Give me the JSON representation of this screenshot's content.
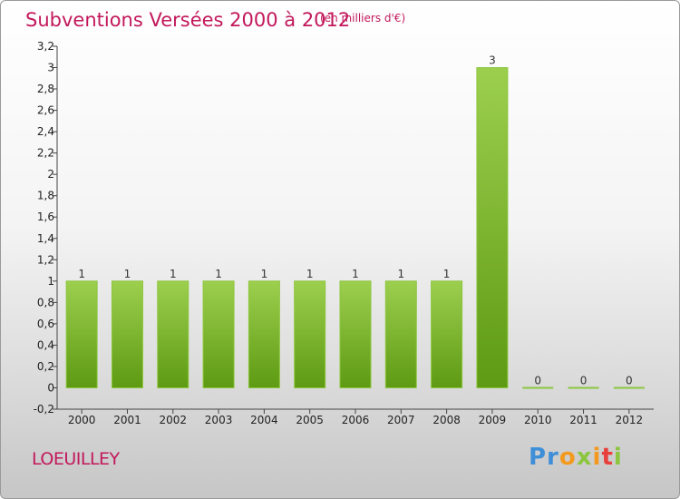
{
  "header": {
    "title": "Subventions Versées 2000 à 2012",
    "subtitle": "(en milliers d'€)"
  },
  "footer": {
    "commune": "LOEUILLEY",
    "logo": [
      "Pr",
      "o",
      "x",
      "i",
      "t",
      "i"
    ]
  },
  "colors": {
    "title": "#c2185b",
    "bar_light": "#9ccf4e",
    "bar_dark": "#5e9a13",
    "axis": "#444444"
  },
  "chart_data": {
    "type": "bar",
    "categories": [
      "2000",
      "2001",
      "2002",
      "2003",
      "2004",
      "2005",
      "2006",
      "2007",
      "2008",
      "2009",
      "2010",
      "2011",
      "2012"
    ],
    "values": [
      1,
      1,
      1,
      1,
      1,
      1,
      1,
      1,
      1,
      3,
      0,
      0,
      0
    ],
    "data_labels": [
      "1",
      "1",
      "1",
      "1",
      "1",
      "1",
      "1",
      "1",
      "1",
      "3",
      "0",
      "0",
      "0"
    ],
    "title": "Subventions Versées 2000 à 2012",
    "xlabel": "",
    "ylabel": "",
    "ylim": [
      -0.2,
      3.2
    ],
    "yticks": [
      "-0,2",
      "0",
      "0,2",
      "0,4",
      "0,6",
      "0,8",
      "1",
      "1,2",
      "1,4",
      "1,6",
      "1,8",
      "2",
      "2,2",
      "2,4",
      "2,6",
      "2,8",
      "3",
      "3,2"
    ],
    "ytick_values": [
      -0.2,
      0,
      0.2,
      0.4,
      0.6,
      0.8,
      1,
      1.2,
      1.4,
      1.6,
      1.8,
      2,
      2.2,
      2.4,
      2.6,
      2.8,
      3,
      3.2
    ],
    "grid": false,
    "legend": "none"
  }
}
